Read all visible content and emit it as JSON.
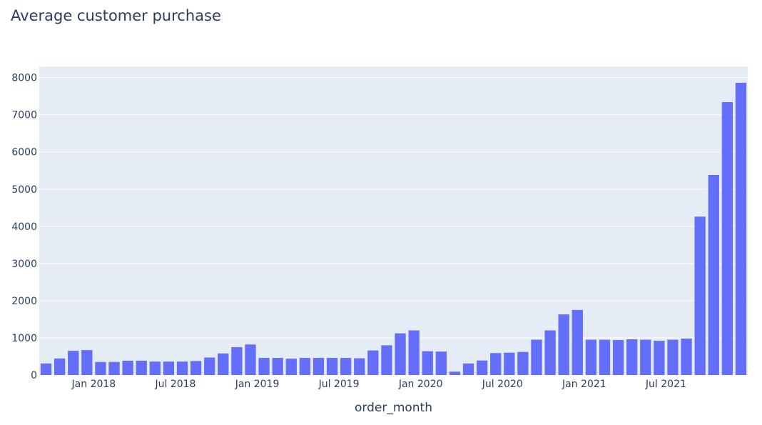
{
  "chart_data": {
    "type": "bar",
    "title": "Average customer purchase",
    "xlabel": "order_month",
    "ylabel": "",
    "ylim": [
      0,
      8300
    ],
    "yticks": [
      0,
      1000,
      2000,
      3000,
      4000,
      5000,
      6000,
      7000,
      8000
    ],
    "x_tick_labels": [
      {
        "label": "Jan 2018",
        "month": "2018-01"
      },
      {
        "label": "Jul 2018",
        "month": "2018-07"
      },
      {
        "label": "Jan 2019",
        "month": "2019-01"
      },
      {
        "label": "Jul 2019",
        "month": "2019-07"
      },
      {
        "label": "Jan 2020",
        "month": "2020-01"
      },
      {
        "label": "Jul 2020",
        "month": "2020-07"
      },
      {
        "label": "Jan 2021",
        "month": "2021-01"
      },
      {
        "label": "Jul 2021",
        "month": "2021-07"
      }
    ],
    "grid": true,
    "bar_color": "#636efa",
    "plot_bg": "#e5ecf6",
    "categories": [
      "2017-09",
      "2017-10",
      "2017-11",
      "2017-12",
      "2018-01",
      "2018-02",
      "2018-03",
      "2018-04",
      "2018-05",
      "2018-06",
      "2018-07",
      "2018-08",
      "2018-09",
      "2018-10",
      "2018-11",
      "2018-12",
      "2019-01",
      "2019-02",
      "2019-03",
      "2019-04",
      "2019-05",
      "2019-06",
      "2019-07",
      "2019-08",
      "2019-09",
      "2019-10",
      "2019-11",
      "2019-12",
      "2020-01",
      "2020-02",
      "2020-03",
      "2020-04",
      "2020-05",
      "2020-06",
      "2020-07",
      "2020-08",
      "2020-09",
      "2020-10",
      "2020-11",
      "2020-12",
      "2021-01",
      "2021-02",
      "2021-03",
      "2021-04",
      "2021-05",
      "2021-06",
      "2021-07",
      "2021-08",
      "2021-09",
      "2021-10",
      "2021-11",
      "2021-12"
    ],
    "values": [
      310,
      445,
      650,
      670,
      350,
      350,
      385,
      385,
      360,
      360,
      360,
      375,
      470,
      580,
      750,
      820,
      460,
      460,
      440,
      460,
      460,
      460,
      460,
      450,
      660,
      800,
      1120,
      1200,
      640,
      630,
      90,
      310,
      390,
      590,
      600,
      620,
      950,
      1200,
      1630,
      1750,
      950,
      950,
      940,
      960,
      950,
      920,
      950,
      980,
      4260,
      5380,
      7340,
      7860
    ]
  }
}
